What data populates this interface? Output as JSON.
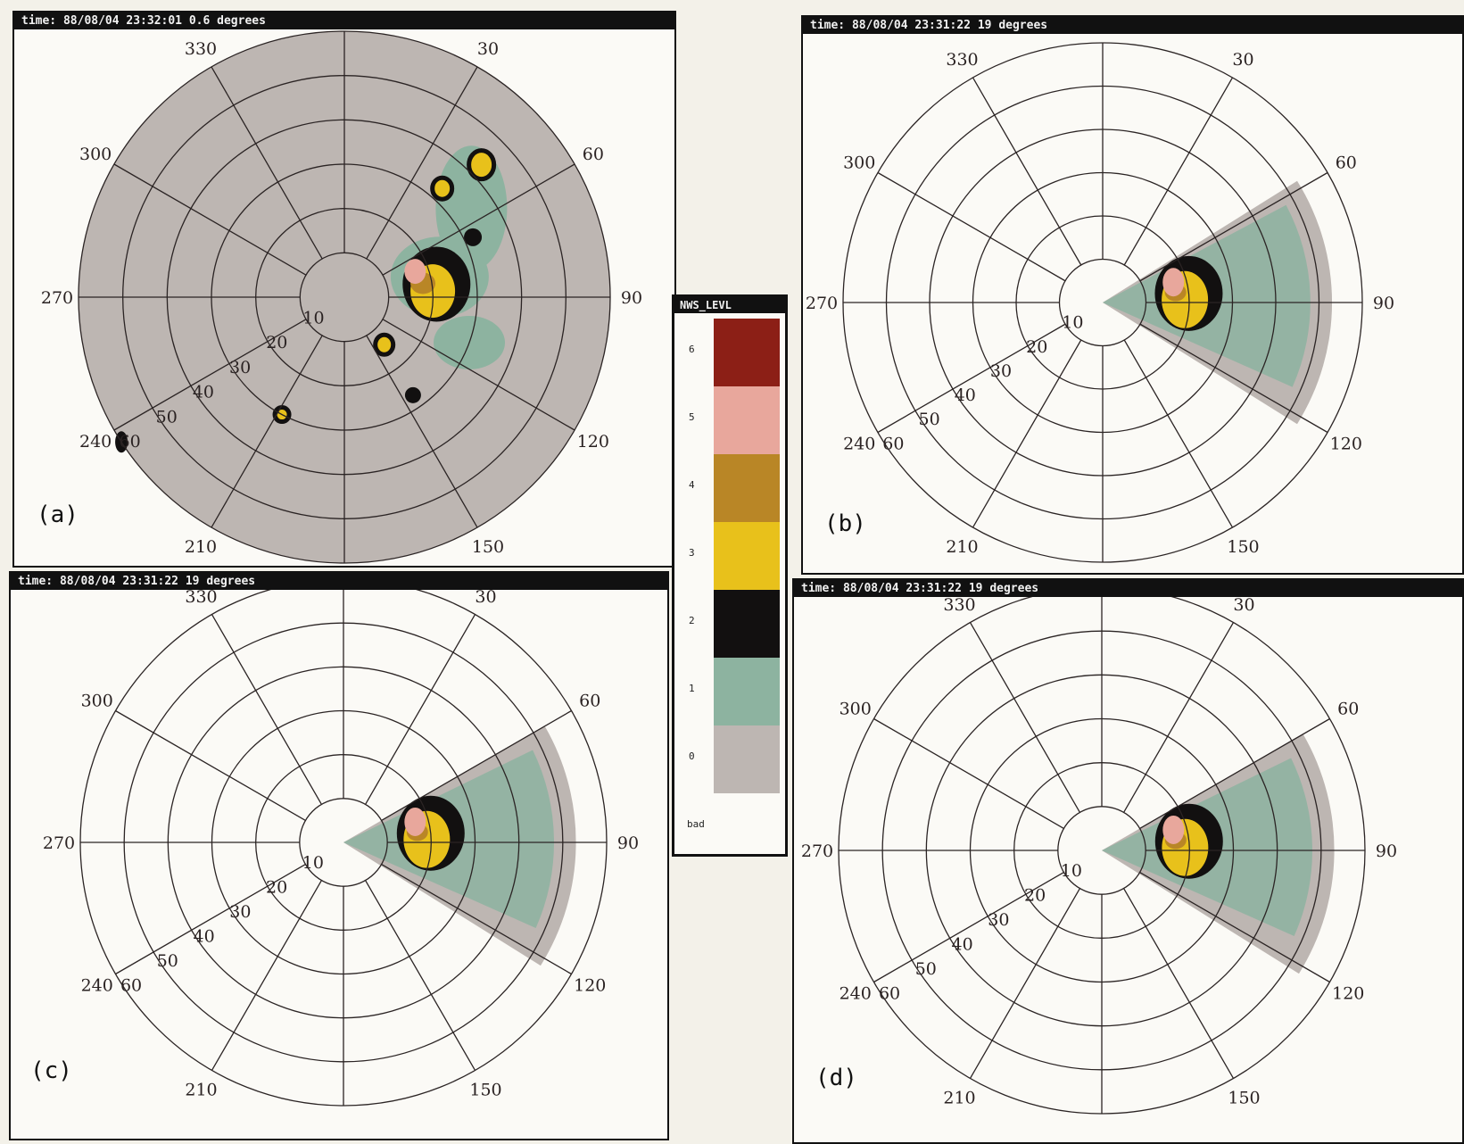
{
  "panels": [
    {
      "id": "a",
      "header": "time:  88/08/04 23:32:01 0.6 degrees",
      "label": "(a)"
    },
    {
      "id": "b",
      "header": "time:  88/08/04 23:31:22 19 degrees",
      "label": "(b)"
    },
    {
      "id": "c",
      "header": "time:  88/08/04 23:31:22 19 degrees",
      "label": "(c)"
    },
    {
      "id": "d",
      "header": "time:  88/08/04 23:31:22 19 degrees",
      "label": "(d)"
    }
  ],
  "legend": {
    "title": "NWS_LEVL",
    "levels": [
      {
        "label": "6",
        "color": "#8c1f16"
      },
      {
        "label": "5",
        "color": "#e8a79c"
      },
      {
        "label": "4",
        "color": "#b98626"
      },
      {
        "label": "3",
        "color": "#e8c11b"
      },
      {
        "label": "2",
        "color": "#121010"
      },
      {
        "label": "1",
        "color": "#8db3a0"
      },
      {
        "label": "0",
        "color": "#bdb6b2"
      }
    ],
    "bad_label": "bad"
  },
  "chart_data": {
    "type": "polar",
    "azimuth_labels": [
      "30",
      "60",
      "90",
      "120",
      "150",
      "210",
      "240",
      "270",
      "300",
      "330"
    ],
    "range_labels_a": [
      "10",
      "20",
      "30",
      "40",
      "50",
      "60"
    ],
    "range_labels_bcd": [
      "10",
      "20",
      "30",
      "40",
      "50",
      "60"
    ],
    "range_rings_km": [
      10,
      20,
      30,
      40,
      50,
      60
    ],
    "azimuth_spokes_deg": [
      0,
      30,
      60,
      90,
      120,
      150,
      180,
      210,
      240,
      270,
      300,
      330
    ]
  }
}
